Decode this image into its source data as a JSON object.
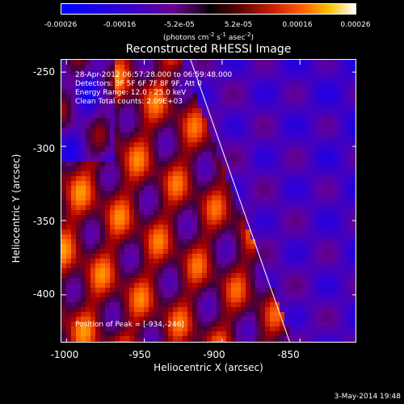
{
  "colorbar": {
    "ticks": [
      "-0.00026",
      "-0.00016",
      "-5.2e-05",
      "5.2e-05",
      "0.00016",
      "0.00026"
    ],
    "units_prefix": "(photons cm",
    "units_mid1": " s",
    "units_mid2": " asec",
    "units_suffix": ")",
    "exp1": "-2",
    "exp2": "-1",
    "exp3": "-2"
  },
  "plot": {
    "title": "Reconstructed RHESSI Image",
    "info_line1": "28-Apr-2012 06:57:28.000 to 06:59:48.000",
    "info_line2": "Detectors: 3F 5F 6F 7F 8F 9F, Att 0",
    "info_line3": "Energy Range: 12.0 - 25.0 keV",
    "info_line4": "Clean     Total counts: 2.09E+03",
    "peak_label": "Position of Peak = [-934,-246]"
  },
  "chart_data": {
    "type": "heatmap",
    "title": "Reconstructed RHESSI Image",
    "xlabel": "Heliocentric X (arcsec)",
    "ylabel": "Heliocentric Y (arcsec)",
    "xlim": [
      -1003,
      -813
    ],
    "ylim": [
      -433,
      -242
    ],
    "xticks": [
      "-1000",
      "-950",
      "-900",
      "-850"
    ],
    "yticks": [
      "-250",
      "-300",
      "-350",
      "-400"
    ],
    "colorbar_range": [
      -0.00026,
      0.00026
    ],
    "peak_position": [
      -934,
      -246
    ],
    "limb_line": [
      [
        -920,
        -242
      ],
      [
        -856,
        -433
      ]
    ],
    "colormap": "blue-black-red-yellow-white"
  },
  "footer": {
    "timestamp": "3-May-2014 19:48"
  }
}
